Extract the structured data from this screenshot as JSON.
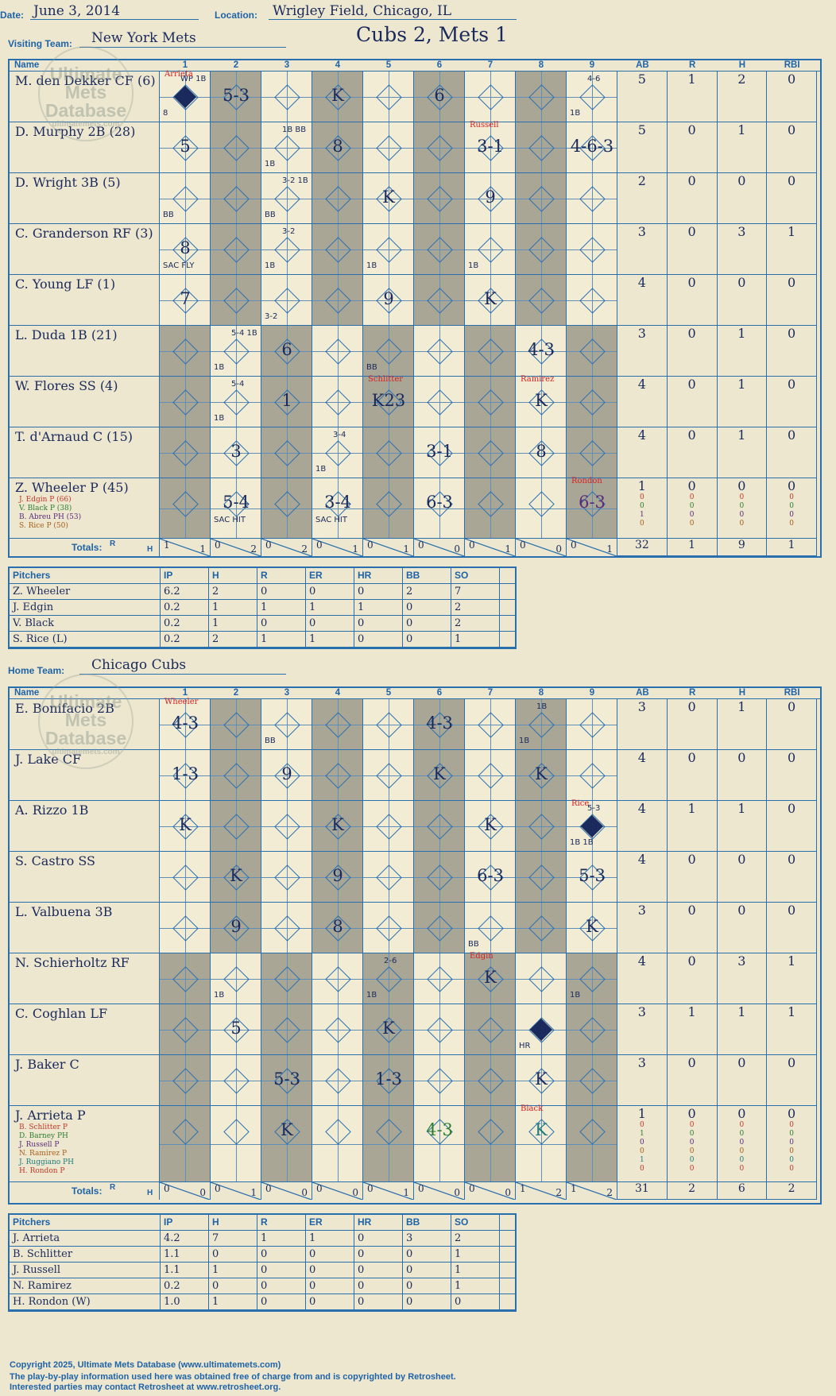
{
  "header": {
    "date_label": "Date:",
    "date": "June 3, 2014",
    "location_label": "Location:",
    "location": "Wrigley Field, Chicago, IL",
    "visiting_label": "Visiting Team:",
    "visiting_team": "New York Mets",
    "home_label": "Home Team:",
    "home_team": "Chicago Cubs",
    "result": "Cubs 2, Mets 1"
  },
  "columns": {
    "name": "Name",
    "innings": [
      "1",
      "2",
      "3",
      "4",
      "5",
      "6",
      "7",
      "8",
      "9"
    ],
    "stats": [
      "AB",
      "R",
      "H",
      "RBI"
    ],
    "totals": "Totals:",
    "r": "R",
    "h": "H"
  },
  "watermark": [
    "Ultimate",
    "Mets",
    "Database",
    "ultimatemets.com"
  ],
  "visitors": {
    "batters": [
      {
        "name": "M. den Dekker CF (6)",
        "ab": "5",
        "r": "1",
        "h": "2",
        "rbi": "0"
      },
      {
        "name": "D. Murphy 2B (28)",
        "ab": "5",
        "r": "0",
        "h": "1",
        "rbi": "0"
      },
      {
        "name": "D. Wright 3B (5)",
        "ab": "2",
        "r": "0",
        "h": "0",
        "rbi": "0"
      },
      {
        "name": "C. Granderson RF (3)",
        "ab": "3",
        "r": "0",
        "h": "3",
        "rbi": "1"
      },
      {
        "name": "C. Young LF (1)",
        "ab": "4",
        "r": "0",
        "h": "0",
        "rbi": "0"
      },
      {
        "name": "L. Duda 1B (21)",
        "ab": "3",
        "r": "0",
        "h": "1",
        "rbi": "0"
      },
      {
        "name": "W. Flores SS (4)",
        "ab": "4",
        "r": "0",
        "h": "1",
        "rbi": "0"
      },
      {
        "name": "T. d'Arnaud C (15)",
        "ab": "4",
        "r": "0",
        "h": "1",
        "rbi": "0"
      },
      {
        "name": "Z. Wheeler P (45)",
        "ab": "1",
        "r": "0",
        "h": "0",
        "rbi": "0"
      }
    ],
    "subs": [
      {
        "name": "J. Edgin P (66)",
        "color": "#c0392b",
        "ab": "0",
        "r": "0",
        "h": "0",
        "rbi": "0"
      },
      {
        "name": "V. Black P (38)",
        "color": "#2e7d32",
        "ab": "0",
        "r": "0",
        "h": "0",
        "rbi": "0"
      },
      {
        "name": "B. Abreu PH (53)",
        "color": "#5a2a7a",
        "ab": "1",
        "r": "0",
        "h": "0",
        "rbi": "0"
      },
      {
        "name": "S. Rice P (50)",
        "color": "#a65d1a",
        "ab": "0",
        "r": "0",
        "h": "0",
        "rbi": "0"
      }
    ],
    "plays": [
      {
        "row": 0,
        "inn": 0,
        "text": "",
        "note": "WP 1B",
        "note2": "8",
        "scored": true,
        "pitcher": "Arrieta"
      },
      {
        "row": 0,
        "inn": 1,
        "text": "5-3"
      },
      {
        "row": 0,
        "inn": 3,
        "text": "K"
      },
      {
        "row": 0,
        "inn": 5,
        "text": "6"
      },
      {
        "row": 0,
        "inn": 8,
        "text": "",
        "note": "4-6",
        "note2": "1B"
      },
      {
        "row": 1,
        "inn": 0,
        "text": "5"
      },
      {
        "row": 1,
        "inn": 2,
        "text": "",
        "note": "1B BB",
        "note2": "1B"
      },
      {
        "row": 1,
        "inn": 3,
        "text": "8"
      },
      {
        "row": 1,
        "inn": 6,
        "text": "3-1",
        "pitcher": "Russell"
      },
      {
        "row": 1,
        "inn": 8,
        "text": "4-6-3"
      },
      {
        "row": 2,
        "inn": 0,
        "text": "",
        "note2": "BB"
      },
      {
        "row": 2,
        "inn": 2,
        "text": "",
        "note": "3-2 1B",
        "note2": "BB"
      },
      {
        "row": 2,
        "inn": 4,
        "text": "K"
      },
      {
        "row": 2,
        "inn": 6,
        "text": "9"
      },
      {
        "row": 3,
        "inn": 0,
        "text": "8",
        "note2": "SAC FLY"
      },
      {
        "row": 3,
        "inn": 2,
        "text": "",
        "note": "3-2",
        "note2": "1B"
      },
      {
        "row": 3,
        "inn": 4,
        "text": "",
        "note2": "1B"
      },
      {
        "row": 3,
        "inn": 6,
        "text": "",
        "note2": "1B"
      },
      {
        "row": 4,
        "inn": 0,
        "text": "7"
      },
      {
        "row": 4,
        "inn": 2,
        "text": "",
        "note2": "3-2"
      },
      {
        "row": 4,
        "inn": 4,
        "text": "9"
      },
      {
        "row": 4,
        "inn": 6,
        "text": "K"
      },
      {
        "row": 5,
        "inn": 1,
        "text": "",
        "note": "5-4 1B",
        "note2": "1B"
      },
      {
        "row": 5,
        "inn": 2,
        "text": "6"
      },
      {
        "row": 5,
        "inn": 4,
        "text": "",
        "note2": "BB"
      },
      {
        "row": 5,
        "inn": 7,
        "text": "4-3"
      },
      {
        "row": 6,
        "inn": 1,
        "text": "",
        "note": "5-4",
        "note2": "1B"
      },
      {
        "row": 6,
        "inn": 2,
        "text": "1"
      },
      {
        "row": 6,
        "inn": 4,
        "text": "K23",
        "pitcher": "Schlitter"
      },
      {
        "row": 6,
        "inn": 7,
        "text": "K",
        "pitcher": "Ramirez"
      },
      {
        "row": 7,
        "inn": 1,
        "text": "3"
      },
      {
        "row": 7,
        "inn": 3,
        "text": "",
        "note": "3-4",
        "note2": "1B"
      },
      {
        "row": 7,
        "inn": 5,
        "text": "3-1"
      },
      {
        "row": 7,
        "inn": 7,
        "text": "8"
      },
      {
        "row": 8,
        "inn": 1,
        "text": "5-4",
        "note2": "SAC HIT"
      },
      {
        "row": 8,
        "inn": 3,
        "text": "3-4",
        "note2": "SAC HIT"
      },
      {
        "row": 8,
        "inn": 5,
        "text": "6-3"
      },
      {
        "row": 8,
        "inn": 8,
        "text": "6-3",
        "pitcher": "Rondon",
        "color": "#5a2a7a"
      }
    ],
    "totals": [
      [
        "1",
        "1"
      ],
      [
        "0",
        "2"
      ],
      [
        "0",
        "2"
      ],
      [
        "0",
        "1"
      ],
      [
        "0",
        "1"
      ],
      [
        "0",
        "0"
      ],
      [
        "0",
        "1"
      ],
      [
        "0",
        "0"
      ],
      [
        "0",
        "1"
      ]
    ],
    "stat_totals": {
      "ab": "32",
      "r": "1",
      "h": "9",
      "rbi": "1"
    },
    "pitchers": {
      "headers": [
        "Pitchers",
        "IP",
        "H",
        "R",
        "ER",
        "HR",
        "BB",
        "SO"
      ],
      "rows": [
        [
          "Z. Wheeler",
          "6.2",
          "2",
          "0",
          "0",
          "0",
          "2",
          "7"
        ],
        [
          "J. Edgin",
          "0.2",
          "1",
          "1",
          "1",
          "1",
          "0",
          "2"
        ],
        [
          "V. Black",
          "0.2",
          "1",
          "0",
          "0",
          "0",
          "0",
          "2"
        ],
        [
          "S. Rice (L)",
          "0.2",
          "2",
          "1",
          "1",
          "0",
          "0",
          "1"
        ]
      ]
    }
  },
  "home": {
    "batters": [
      {
        "name": "E. Bonifacio 2B",
        "ab": "3",
        "r": "0",
        "h": "1",
        "rbi": "0"
      },
      {
        "name": "J. Lake CF",
        "ab": "4",
        "r": "0",
        "h": "0",
        "rbi": "0"
      },
      {
        "name": "A. Rizzo 1B",
        "ab": "4",
        "r": "1",
        "h": "1",
        "rbi": "0"
      },
      {
        "name": "S. Castro SS",
        "ab": "4",
        "r": "0",
        "h": "0",
        "rbi": "0"
      },
      {
        "name": "L. Valbuena 3B",
        "ab": "3",
        "r": "0",
        "h": "0",
        "rbi": "0"
      },
      {
        "name": "N. Schierholtz RF",
        "ab": "4",
        "r": "0",
        "h": "3",
        "rbi": "1"
      },
      {
        "name": "C. Coghlan LF",
        "ab": "3",
        "r": "1",
        "h": "1",
        "rbi": "1"
      },
      {
        "name": "J. Baker C",
        "ab": "3",
        "r": "0",
        "h": "0",
        "rbi": "0"
      },
      {
        "name": "J. Arrieta P",
        "ab": "1",
        "r": "0",
        "h": "0",
        "rbi": "0"
      }
    ],
    "subs": [
      {
        "name": "B. Schlitter P",
        "color": "#c0392b",
        "ab": "0",
        "r": "0",
        "h": "0",
        "rbi": "0"
      },
      {
        "name": "D. Barney PH",
        "color": "#2e7d32",
        "ab": "1",
        "r": "0",
        "h": "0",
        "rbi": "0"
      },
      {
        "name": "J. Russell P",
        "color": "#5a2a7a",
        "ab": "0",
        "r": "0",
        "h": "0",
        "rbi": "0"
      },
      {
        "name": "N. Ramirez P",
        "color": "#a65d1a",
        "ab": "0",
        "r": "0",
        "h": "0",
        "rbi": "0"
      },
      {
        "name": "J. Ruggiano PH",
        "color": "#1f7a7a",
        "ab": "1",
        "r": "0",
        "h": "0",
        "rbi": "0"
      },
      {
        "name": "H. Rondon P",
        "color": "#c0392b",
        "ab": "0",
        "r": "0",
        "h": "0",
        "rbi": "0"
      }
    ],
    "plays": [
      {
        "row": 0,
        "inn": 0,
        "text": "4-3",
        "pitcher": "Wheeler"
      },
      {
        "row": 0,
        "inn": 2,
        "text": "",
        "note2": "BB"
      },
      {
        "row": 0,
        "inn": 5,
        "text": "4-3"
      },
      {
        "row": 0,
        "inn": 7,
        "text": "",
        "note": "1B",
        "note2": "1B"
      },
      {
        "row": 1,
        "inn": 0,
        "text": "1-3"
      },
      {
        "row": 1,
        "inn": 2,
        "text": "9"
      },
      {
        "row": 1,
        "inn": 5,
        "text": "K"
      },
      {
        "row": 1,
        "inn": 7,
        "text": "K"
      },
      {
        "row": 2,
        "inn": 0,
        "text": "K"
      },
      {
        "row": 2,
        "inn": 3,
        "text": "K"
      },
      {
        "row": 2,
        "inn": 6,
        "text": "K"
      },
      {
        "row": 2,
        "inn": 8,
        "text": "",
        "note": "5-3",
        "note2": "1B 1B",
        "scored": true,
        "pitcher": "Rice"
      },
      {
        "row": 3,
        "inn": 1,
        "text": "K"
      },
      {
        "row": 3,
        "inn": 3,
        "text": "9"
      },
      {
        "row": 3,
        "inn": 6,
        "text": "6-3"
      },
      {
        "row": 3,
        "inn": 8,
        "text": "5-3"
      },
      {
        "row": 4,
        "inn": 1,
        "text": "9"
      },
      {
        "row": 4,
        "inn": 3,
        "text": "8"
      },
      {
        "row": 4,
        "inn": 6,
        "text": "",
        "note2": "BB"
      },
      {
        "row": 4,
        "inn": 8,
        "text": "K"
      },
      {
        "row": 5,
        "inn": 1,
        "text": "",
        "note2": "1B"
      },
      {
        "row": 5,
        "inn": 4,
        "text": "",
        "note": "2-6",
        "note2": "1B"
      },
      {
        "row": 5,
        "inn": 6,
        "text": "K",
        "pitcher": "Edgin"
      },
      {
        "row": 5,
        "inn": 8,
        "text": "",
        "note2": "1B"
      },
      {
        "row": 6,
        "inn": 1,
        "text": "5"
      },
      {
        "row": 6,
        "inn": 4,
        "text": "K"
      },
      {
        "row": 6,
        "inn": 7,
        "text": "",
        "note2": "HR",
        "scored": true
      },
      {
        "row": 7,
        "inn": 2,
        "text": "5-3"
      },
      {
        "row": 7,
        "inn": 4,
        "text": "1-3"
      },
      {
        "row": 7,
        "inn": 7,
        "text": "K"
      },
      {
        "row": 8,
        "inn": 2,
        "text": "K"
      },
      {
        "row": 8,
        "inn": 5,
        "text": "4-3",
        "color": "#2e7d32"
      },
      {
        "row": 8,
        "inn": 7,
        "text": "K",
        "pitcher": "Black",
        "color": "#1f7a7a"
      }
    ],
    "totals": [
      [
        "0",
        "0"
      ],
      [
        "0",
        "1"
      ],
      [
        "0",
        "0"
      ],
      [
        "0",
        "0"
      ],
      [
        "0",
        "1"
      ],
      [
        "0",
        "0"
      ],
      [
        "0",
        "0"
      ],
      [
        "1",
        "2"
      ],
      [
        "1",
        "2"
      ]
    ],
    "stat_totals": {
      "ab": "31",
      "r": "2",
      "h": "6",
      "rbi": "2"
    },
    "pitchers": {
      "headers": [
        "Pitchers",
        "IP",
        "H",
        "R",
        "ER",
        "HR",
        "BB",
        "SO"
      ],
      "rows": [
        [
          "J. Arrieta",
          "4.2",
          "7",
          "1",
          "1",
          "0",
          "3",
          "2"
        ],
        [
          "B. Schlitter",
          "1.1",
          "0",
          "0",
          "0",
          "0",
          "0",
          "1"
        ],
        [
          "J. Russell",
          "1.1",
          "1",
          "0",
          "0",
          "0",
          "0",
          "1"
        ],
        [
          "N. Ramirez",
          "0.2",
          "0",
          "0",
          "0",
          "0",
          "0",
          "1"
        ],
        [
          "H. Rondon (W)",
          "1.0",
          "1",
          "0",
          "0",
          "0",
          "0",
          "0"
        ]
      ]
    }
  },
  "footer": {
    "line1": "Copyright 2025, Ultimate Mets Database (www.ultimatemets.com)",
    "line2": "The play-by-play information used here was obtained free of charge from and is copyrighted by Retrosheet.",
    "line3": "Interested parties may contact Retrosheet at www.retrosheet.org."
  }
}
